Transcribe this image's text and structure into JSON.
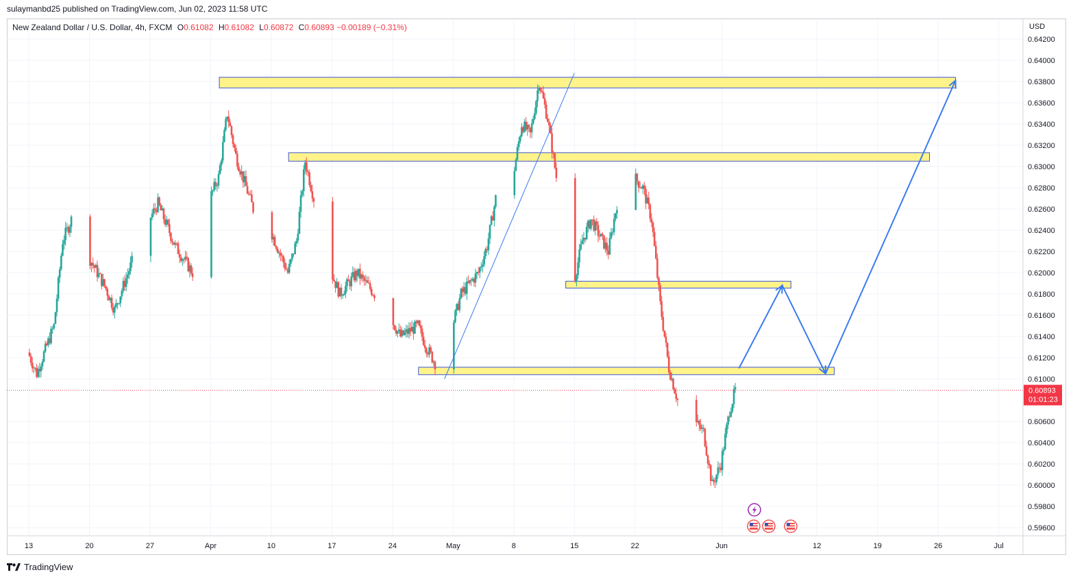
{
  "header": {
    "publisher": "sulaymanbd25 published on TradingView.com, Jun 02, 2023 11:58 UTC"
  },
  "legend": {
    "symbol": "New Zealand Dollar / U.S. Dollar, 4h, FXCM",
    "o_label": "O",
    "o": "0.61082",
    "h_label": "H",
    "h": "0.61082",
    "l_label": "L",
    "l": "0.60872",
    "c_label": "C",
    "c": "0.60893",
    "change": "−0.00189 (−0.31%)"
  },
  "axis": {
    "currency": "USD",
    "current_price": "0.60893",
    "countdown": "01:01:23"
  },
  "branding": {
    "name": "TradingView"
  },
  "colors": {
    "up": "#26a69a",
    "down": "#ef5350",
    "zone_fill": "#fff176",
    "zone_border": "#3a56d4",
    "projection": "#3a7af0",
    "current_price": "#f23645"
  },
  "chart_data": {
    "type": "candlestick",
    "title": "New Zealand Dollar / U.S. Dollar, 4h, FXCM",
    "ylim": [
      0.595,
      0.6425
    ],
    "y_ticks": [
      "0.64200",
      "0.64000",
      "0.63800",
      "0.63600",
      "0.63400",
      "0.63200",
      "0.63000",
      "0.62800",
      "0.62600",
      "0.62400",
      "0.62200",
      "0.62000",
      "0.61800",
      "0.61600",
      "0.61400",
      "0.61200",
      "0.61000",
      "0.60600",
      "0.60400",
      "0.60200",
      "0.60000",
      "0.59800",
      "0.59600"
    ],
    "x_ticks": [
      "13",
      "20",
      "27",
      "Apr",
      "10",
      "17",
      "24",
      "May",
      "8",
      "15",
      "22",
      "Jun",
      "12",
      "19",
      "26",
      "Jul"
    ],
    "x_range": [
      "2023-03-13",
      "2023-07-01"
    ],
    "grid": true,
    "current_price": 0.60893,
    "price_path": [
      {
        "date": "2023-03-13",
        "price": 0.6125
      },
      {
        "date": "2023-03-14",
        "price": 0.6105
      },
      {
        "date": "2023-03-16",
        "price": 0.615
      },
      {
        "date": "2023-03-17",
        "price": 0.623
      },
      {
        "date": "2023-03-18",
        "price": 0.625
      },
      {
        "date": "2023-03-20",
        "price": 0.6215
      },
      {
        "date": "2023-03-22",
        "price": 0.6185
      },
      {
        "date": "2023-03-23",
        "price": 0.6165
      },
      {
        "date": "2023-03-25",
        "price": 0.621
      },
      {
        "date": "2023-03-27",
        "price": 0.625
      },
      {
        "date": "2023-03-28",
        "price": 0.6265
      },
      {
        "date": "2023-03-30",
        "price": 0.6225
      },
      {
        "date": "2023-04-01",
        "price": 0.62
      },
      {
        "date": "2023-04-02",
        "price": 0.623
      },
      {
        "date": "2023-04-03",
        "price": 0.627
      },
      {
        "date": "2023-04-04",
        "price": 0.629
      },
      {
        "date": "2023-04-05",
        "price": 0.635
      },
      {
        "date": "2023-04-06",
        "price": 0.631
      },
      {
        "date": "2023-04-08",
        "price": 0.626
      },
      {
        "date": "2023-04-10",
        "price": 0.624
      },
      {
        "date": "2023-04-12",
        "price": 0.62
      },
      {
        "date": "2023-04-13",
        "price": 0.623
      },
      {
        "date": "2023-04-14",
        "price": 0.6305
      },
      {
        "date": "2023-04-15",
        "price": 0.627
      },
      {
        "date": "2023-04-17",
        "price": 0.62
      },
      {
        "date": "2023-04-18",
        "price": 0.618
      },
      {
        "date": "2023-04-20",
        "price": 0.62
      },
      {
        "date": "2023-04-21",
        "price": 0.619
      },
      {
        "date": "2023-04-23",
        "price": 0.617
      },
      {
        "date": "2023-04-25",
        "price": 0.614
      },
      {
        "date": "2023-04-27",
        "price": 0.615
      },
      {
        "date": "2023-04-28",
        "price": 0.613
      },
      {
        "date": "2023-04-29",
        "price": 0.6115
      },
      {
        "date": "2023-05-01",
        "price": 0.615
      },
      {
        "date": "2023-05-02",
        "price": 0.618
      },
      {
        "date": "2023-05-04",
        "price": 0.62
      },
      {
        "date": "2023-05-05",
        "price": 0.6225
      },
      {
        "date": "2023-05-06",
        "price": 0.627
      },
      {
        "date": "2023-05-08",
        "price": 0.629
      },
      {
        "date": "2023-05-09",
        "price": 0.634
      },
      {
        "date": "2023-05-10",
        "price": 0.633
      },
      {
        "date": "2023-05-11",
        "price": 0.638
      },
      {
        "date": "2023-05-12",
        "price": 0.6345
      },
      {
        "date": "2023-05-13",
        "price": 0.629
      },
      {
        "date": "2023-05-14",
        "price": 0.622
      },
      {
        "date": "2023-05-15",
        "price": 0.619
      },
      {
        "date": "2023-05-16",
        "price": 0.623
      },
      {
        "date": "2023-05-17",
        "price": 0.625
      },
      {
        "date": "2023-05-19",
        "price": 0.622
      },
      {
        "date": "2023-05-20",
        "price": 0.6265
      },
      {
        "date": "2023-05-22",
        "price": 0.629
      },
      {
        "date": "2023-05-23",
        "price": 0.628
      },
      {
        "date": "2023-05-24",
        "price": 0.625
      },
      {
        "date": "2023-05-25",
        "price": 0.617
      },
      {
        "date": "2023-05-26",
        "price": 0.611
      },
      {
        "date": "2023-05-27",
        "price": 0.608
      },
      {
        "date": "2023-05-28",
        "price": 0.605
      },
      {
        "date": "2023-05-29",
        "price": 0.606
      },
      {
        "date": "2023-05-30",
        "price": 0.605
      },
      {
        "date": "2023-05-31",
        "price": 0.6
      },
      {
        "date": "2023-06-01",
        "price": 0.602
      },
      {
        "date": "2023-06-02",
        "price": 0.607
      },
      {
        "date": "2023-06-02T16:00",
        "price": 0.60893
      }
    ],
    "zones": [
      {
        "from": "2023-04-04",
        "to": "2023-06-28",
        "top": 0.6384,
        "bottom": 0.6374
      },
      {
        "from": "2023-04-12",
        "to": "2023-06-25",
        "top": 0.6313,
        "bottom": 0.6305
      },
      {
        "from": "2023-05-14",
        "to": "2023-06-09",
        "top": 0.6192,
        "bottom": 0.6186
      },
      {
        "from": "2023-04-27",
        "to": "2023-06-14",
        "top": 0.6111,
        "bottom": 0.6104
      }
    ],
    "trendline": [
      {
        "date": "2023-04-30",
        "price": 0.61
      },
      {
        "date": "2023-05-15",
        "price": 0.6388
      }
    ],
    "projection": [
      {
        "date": "2023-06-03",
        "price": 0.611
      },
      {
        "date": "2023-06-08",
        "price": 0.6188
      },
      {
        "date": "2023-06-13",
        "price": 0.6105
      },
      {
        "date": "2023-06-28",
        "price": 0.6381
      }
    ]
  }
}
